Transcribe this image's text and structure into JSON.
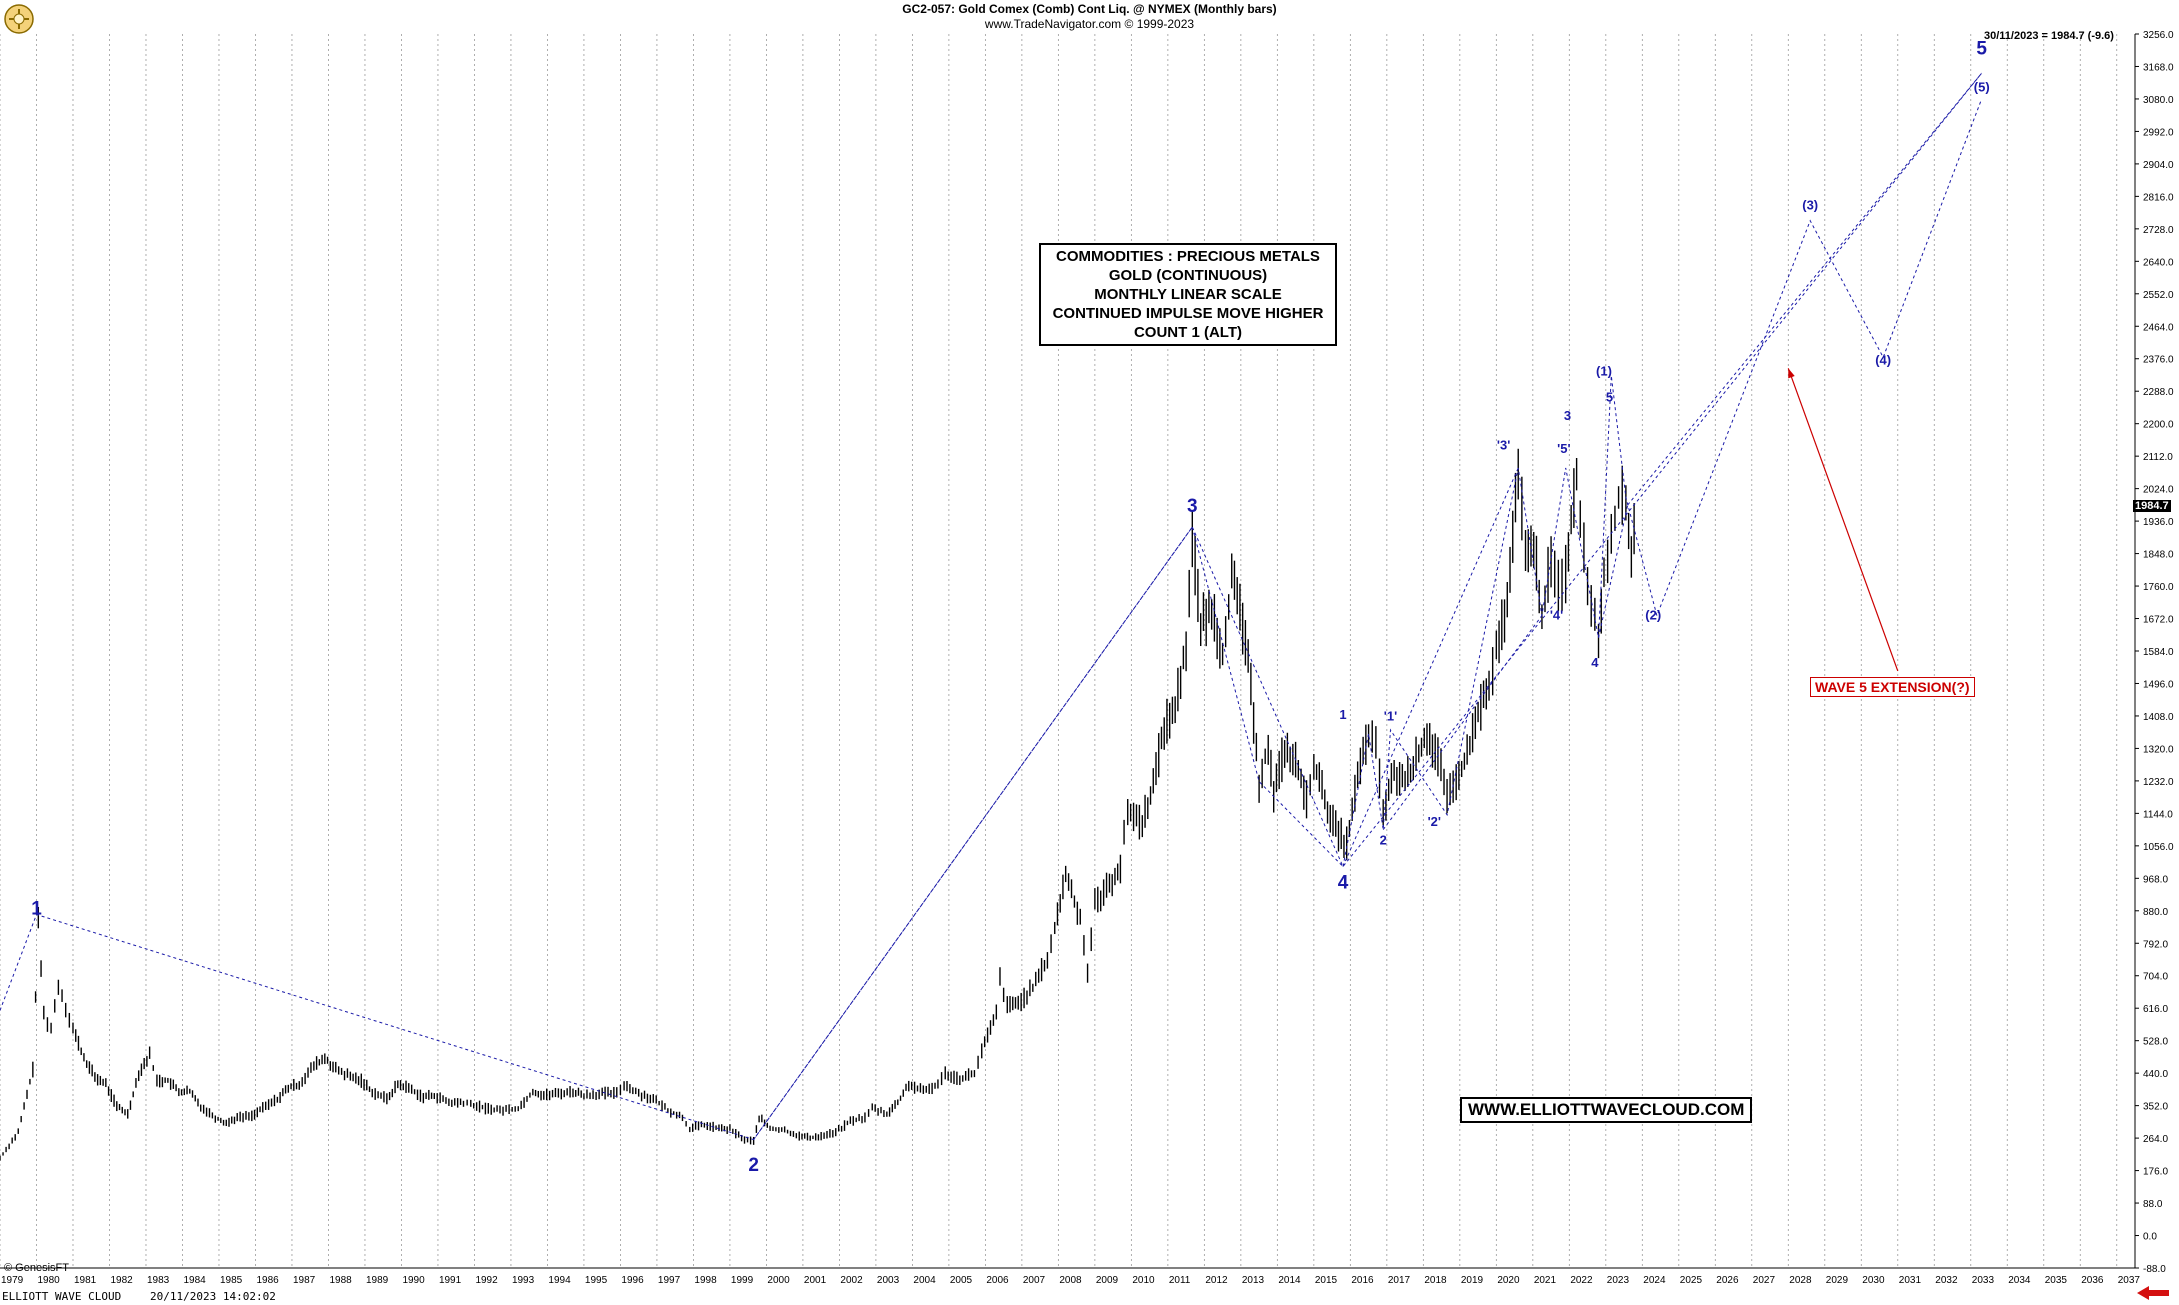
{
  "header": {
    "title": "GC2-057:  Gold Comex (Comb) Cont Liq. @ NYMEX  (Monthly bars)",
    "subtitle": "www.TradeNavigator.com © 1999-2023"
  },
  "last_readout": "30/11/2023 = 1984.7 (-9.6)",
  "last_price_label": "1984.7",
  "copyright": "© GenesisFT",
  "status": {
    "left": "ELLIOTT WAVE CLOUD",
    "timestamp": "20/11/2023 14:02:02"
  },
  "info_box": [
    "COMMODITIES : PRECIOUS METALS",
    "GOLD (CONTINUOUS)",
    "MONTHLY LINEAR SCALE",
    "CONTINUED IMPULSE MOVE HIGHER",
    "COUNT 1 (ALT)"
  ],
  "website": "WWW.ELLIOTTWAVECLOUD.COM",
  "extension_label": "WAVE 5 EXTENSION(?)",
  "colors": {
    "bars": "#000000",
    "wave": "#1a1aa8",
    "annotation": "#cc0000",
    "grid": "#9a9a9a"
  },
  "chart_data": {
    "type": "line",
    "style": "monthly price bars with Elliott wave count overlay",
    "x_axis": {
      "start": 1979,
      "end": 2037,
      "tick_labels": [
        "1979",
        "1980",
        "1981",
        "1982",
        "1983",
        "1984",
        "1985",
        "1986",
        "1987",
        "1988",
        "1989",
        "1990",
        "1991",
        "1992",
        "1993",
        "1994",
        "1995",
        "1996",
        "1997",
        "1998",
        "1999",
        "2000",
        "2001",
        "2002",
        "2003",
        "2004",
        "2005",
        "2006",
        "2007",
        "2008",
        "2009",
        "2010",
        "2011",
        "2012",
        "2013",
        "2014",
        "2015",
        "2016",
        "2017",
        "2018",
        "2019",
        "2020",
        "2021",
        "2022",
        "2023",
        "2024",
        "2025",
        "2026",
        "2027",
        "2028",
        "2029",
        "2030",
        "2031",
        "2032",
        "2033",
        "2034",
        "2035",
        "2036",
        "2037"
      ]
    },
    "y_axis": {
      "range": [
        -88,
        3256
      ],
      "position": "right",
      "tick_labels": [
        "3256.0",
        "3168.0",
        "3080.0",
        "2992.0",
        "2904.0",
        "2816.0",
        "2728.0",
        "2640.0",
        "2552.0",
        "2464.0",
        "2376.0",
        "2288.0",
        "2200.0",
        "2112.0",
        "2024.0",
        "1936.0",
        "1848.0",
        "1760.0",
        "1672.0",
        "1584.0",
        "1496.0",
        "1408.0",
        "1320.0",
        "1232.0",
        "1144.0",
        "1056.0",
        "968.0",
        "880.0",
        "792.0",
        "704.0",
        "616.0",
        "528.0",
        "440.0",
        "352.0",
        "264.0",
        "176.0",
        "88.0",
        "0.0",
        "-88.0"
      ]
    },
    "grid": "vertical dotted lines per year",
    "price_path": [
      [
        1979.0,
        210
      ],
      [
        1979.5,
        280
      ],
      [
        1979.9,
        450
      ],
      [
        1980.05,
        850
      ],
      [
        1980.2,
        600
      ],
      [
        1980.4,
        560
      ],
      [
        1980.6,
        680
      ],
      [
        1980.8,
        620
      ],
      [
        1981.0,
        560
      ],
      [
        1981.3,
        480
      ],
      [
        1981.6,
        430
      ],
      [
        1981.9,
        410
      ],
      [
        1982.2,
        350
      ],
      [
        1982.5,
        330
      ],
      [
        1982.8,
        440
      ],
      [
        1983.1,
        490
      ],
      [
        1983.3,
        420
      ],
      [
        1983.6,
        420
      ],
      [
        1983.9,
        390
      ],
      [
        1984.2,
        390
      ],
      [
        1984.5,
        350
      ],
      [
        1984.9,
        320
      ],
      [
        1985.2,
        305
      ],
      [
        1985.5,
        320
      ],
      [
        1985.9,
        325
      ],
      [
        1986.2,
        345
      ],
      [
        1986.6,
        370
      ],
      [
        1986.9,
        400
      ],
      [
        1987.2,
        410
      ],
      [
        1987.6,
        460
      ],
      [
        1987.9,
        480
      ],
      [
        1988.2,
        450
      ],
      [
        1988.6,
        430
      ],
      [
        1988.9,
        420
      ],
      [
        1989.2,
        390
      ],
      [
        1989.6,
        370
      ],
      [
        1989.9,
        410
      ],
      [
        1990.2,
        400
      ],
      [
        1990.6,
        375
      ],
      [
        1990.9,
        380
      ],
      [
        1991.3,
        360
      ],
      [
        1991.7,
        360
      ],
      [
        1991.9,
        355
      ],
      [
        1992.3,
        345
      ],
      [
        1992.7,
        340
      ],
      [
        1993.2,
        345
      ],
      [
        1993.6,
        390
      ],
      [
        1993.9,
        380
      ],
      [
        1994.3,
        385
      ],
      [
        1994.7,
        390
      ],
      [
        1995.0,
        380
      ],
      [
        1995.5,
        385
      ],
      [
        1995.9,
        385
      ],
      [
        1996.1,
        410
      ],
      [
        1996.5,
        385
      ],
      [
        1996.9,
        370
      ],
      [
        1997.3,
        340
      ],
      [
        1997.7,
        320
      ],
      [
        1997.9,
        290
      ],
      [
        1998.3,
        300
      ],
      [
        1998.7,
        290
      ],
      [
        1999.0,
        288
      ],
      [
        1999.4,
        260
      ],
      [
        1999.65,
        256
      ],
      [
        1999.8,
        320
      ],
      [
        2000.1,
        290
      ],
      [
        2000.5,
        285
      ],
      [
        2000.9,
        270
      ],
      [
        2001.2,
        265
      ],
      [
        2001.5,
        270
      ],
      [
        2001.9,
        280
      ],
      [
        2002.3,
        310
      ],
      [
        2002.7,
        320
      ],
      [
        2002.9,
        345
      ],
      [
        2003.3,
        330
      ],
      [
        2003.6,
        360
      ],
      [
        2003.9,
        410
      ],
      [
        2004.3,
        390
      ],
      [
        2004.7,
        410
      ],
      [
        2004.9,
        440
      ],
      [
        2005.3,
        425
      ],
      [
        2005.7,
        440
      ],
      [
        2005.9,
        500
      ],
      [
        2006.3,
        600
      ],
      [
        2006.4,
        700
      ],
      [
        2006.6,
        620
      ],
      [
        2006.9,
        630
      ],
      [
        2007.3,
        670
      ],
      [
        2007.7,
        750
      ],
      [
        2007.9,
        830
      ],
      [
        2008.2,
        980
      ],
      [
        2008.6,
        860
      ],
      [
        2008.8,
        720
      ],
      [
        2009.0,
        900
      ],
      [
        2009.4,
        950
      ],
      [
        2009.7,
        1000
      ],
      [
        2009.9,
        1150
      ],
      [
        2010.3,
        1120
      ],
      [
        2010.6,
        1220
      ],
      [
        2010.9,
        1380
      ],
      [
        2011.2,
        1430
      ],
      [
        2011.5,
        1600
      ],
      [
        2011.67,
        1900
      ],
      [
        2011.9,
        1650
      ],
      [
        2012.2,
        1700
      ],
      [
        2012.5,
        1580
      ],
      [
        2012.75,
        1780
      ],
      [
        2012.9,
        1720
      ],
      [
        2013.2,
        1580
      ],
      [
        2013.35,
        1380
      ],
      [
        2013.5,
        1230
      ],
      [
        2013.75,
        1330
      ],
      [
        2013.9,
        1200
      ],
      [
        2014.2,
        1320
      ],
      [
        2014.5,
        1280
      ],
      [
        2014.8,
        1180
      ],
      [
        2015.0,
        1280
      ],
      [
        2015.3,
        1180
      ],
      [
        2015.6,
        1100
      ],
      [
        2015.9,
        1060
      ],
      [
        2016.2,
        1240
      ],
      [
        2016.5,
        1360
      ],
      [
        2016.7,
        1320
      ],
      [
        2016.9,
        1150
      ],
      [
        2017.2,
        1250
      ],
      [
        2017.5,
        1230
      ],
      [
        2017.8,
        1290
      ],
      [
        2018.1,
        1360
      ],
      [
        2018.4,
        1300
      ],
      [
        2018.65,
        1180
      ],
      [
        2018.9,
        1230
      ],
      [
        2019.2,
        1300
      ],
      [
        2019.5,
        1420
      ],
      [
        2019.8,
        1480
      ],
      [
        2020.0,
        1590
      ],
      [
        2020.3,
        1700
      ],
      [
        2020.6,
        2070
      ],
      [
        2020.8,
        1880
      ],
      [
        2021.1,
        1820
      ],
      [
        2021.25,
        1680
      ],
      [
        2021.5,
        1830
      ],
      [
        2021.7,
        1750
      ],
      [
        2021.9,
        1800
      ],
      [
        2022.2,
        2070
      ],
      [
        2022.4,
        1850
      ],
      [
        2022.6,
        1720
      ],
      [
        2022.8,
        1620
      ],
      [
        2022.95,
        1800
      ],
      [
        2023.15,
        1900
      ],
      [
        2023.35,
        2000
      ],
      [
        2023.55,
        1980
      ],
      [
        2023.7,
        1850
      ],
      [
        2023.85,
        1984.7
      ]
    ],
    "wave_labels": [
      {
        "text": "1",
        "x": 1980.0,
        "y": 870,
        "size": "large"
      },
      {
        "text": "2",
        "x": 1999.65,
        "y": 175,
        "size": "large"
      },
      {
        "text": "3",
        "x": 2011.67,
        "y": 1960,
        "size": "large"
      },
      {
        "text": "4",
        "x": 2015.8,
        "y": 940,
        "size": "large"
      },
      {
        "text": "5",
        "x": 2033.3,
        "y": 3200,
        "size": "large"
      },
      {
        "text": "1",
        "x": 2015.8,
        "y": 1400,
        "size": "small"
      },
      {
        "text": "2",
        "x": 2016.9,
        "y": 1060,
        "size": "small"
      },
      {
        "text": "'1'",
        "x": 2017.1,
        "y": 1395,
        "size": "small"
      },
      {
        "text": "'2'",
        "x": 2018.3,
        "y": 1110,
        "size": "small"
      },
      {
        "text": "'3'",
        "x": 2020.2,
        "y": 2130,
        "size": "small"
      },
      {
        "text": "3",
        "x": 2021.95,
        "y": 2210,
        "size": "small"
      },
      {
        "text": "'5'",
        "x": 2021.85,
        "y": 2120,
        "size": "small"
      },
      {
        "text": "'4'",
        "x": 2021.65,
        "y": 1670,
        "size": "small"
      },
      {
        "text": "4",
        "x": 2022.7,
        "y": 1540,
        "size": "small"
      },
      {
        "text": "(1)",
        "x": 2022.95,
        "y": 2330,
        "size": "small"
      },
      {
        "text": "5",
        "x": 2023.1,
        "y": 2260,
        "size": "small"
      },
      {
        "text": "(2)",
        "x": 2024.3,
        "y": 1670,
        "size": "small"
      },
      {
        "text": "(3)",
        "x": 2028.6,
        "y": 2780,
        "size": "small"
      },
      {
        "text": "(4)",
        "x": 2030.6,
        "y": 2360,
        "size": "small"
      },
      {
        "text": "(5)",
        "x": 2033.3,
        "y": 3100,
        "size": "small"
      }
    ],
    "wave_lines": [
      [
        [
          1979.0,
          610
        ],
        [
          1980.0,
          870
        ],
        [
          1999.65,
          260
        ],
        [
          2011.67,
          1920
        ],
        [
          2015.8,
          1000
        ],
        [
          2033.3,
          3150
        ]
      ],
      [
        [
          1999.65,
          260
        ],
        [
          2011.67,
          1920
        ]
      ],
      [
        [
          2011.67,
          1920
        ],
        [
          2013.5,
          1230
        ],
        [
          2015.8,
          1000
        ]
      ],
      [
        [
          2015.8,
          1000
        ],
        [
          2016.5,
          1360
        ],
        [
          2016.9,
          1100
        ],
        [
          2017.1,
          1370
        ],
        [
          2018.65,
          1140
        ],
        [
          2020.6,
          2080
        ],
        [
          2021.25,
          1680
        ],
        [
          2021.9,
          2080
        ],
        [
          2022.8,
          1620
        ],
        [
          2023.15,
          2330
        ],
        [
          2023.55,
          2000
        ],
        [
          2024.4,
          1680
        ],
        [
          2028.6,
          2750
        ],
        [
          2030.6,
          2380
        ],
        [
          2033.3,
          3080
        ]
      ],
      [
        [
          2015.8,
          1000
        ],
        [
          2020.6,
          2080
        ]
      ],
      [
        [
          2016.9,
          1100
        ],
        [
          2021.25,
          1680
        ]
      ],
      [
        [
          2022.8,
          1620
        ],
        [
          2023.6,
          1980
        ]
      ],
      [
        [
          2023.6,
          1980
        ],
        [
          2033.3,
          3150
        ]
      ]
    ],
    "annotation_arrow": {
      "from": [
        2031.0,
        1530
      ],
      "to": [
        2028.0,
        2350
      ]
    }
  }
}
